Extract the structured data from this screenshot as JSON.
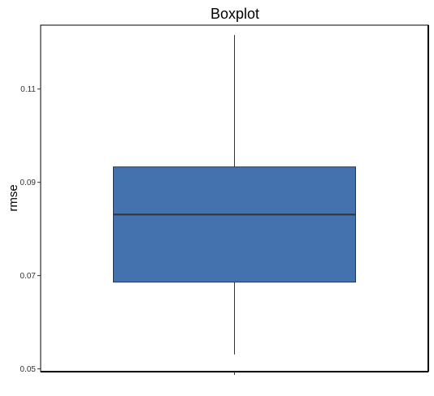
{
  "chart_data": {
    "type": "boxplot",
    "title": "Boxplot",
    "xlabel": "",
    "ylabel": "rmse",
    "ylim": [
      0.0494,
      0.1237
    ],
    "y_ticks": [
      0.05,
      0.07,
      0.09,
      0.11
    ],
    "y_tick_labels": [
      "0.05",
      "0.07",
      "0.09",
      "0.11"
    ],
    "grid": false,
    "legend": "none",
    "series": [
      {
        "whisker_low": 0.0531,
        "q1": 0.0686,
        "median": 0.0831,
        "q3": 0.0933,
        "whisker_high": 0.1216,
        "fill_color": "#4472AE",
        "line_color": "#333333"
      }
    ]
  }
}
